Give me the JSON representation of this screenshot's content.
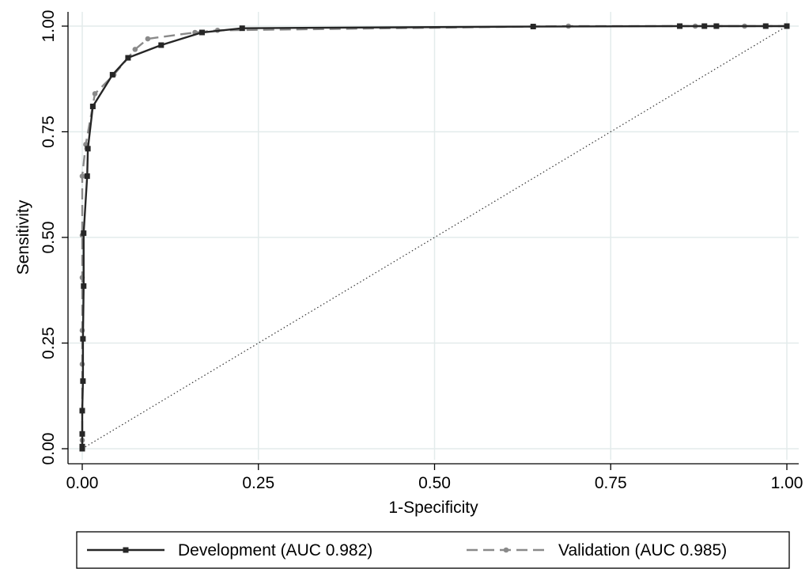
{
  "chart_data": {
    "type": "line",
    "title": "",
    "xlabel": "1-Specificity",
    "ylabel": "Sensitivity",
    "xlim": [
      0,
      1
    ],
    "ylim": [
      0,
      1
    ],
    "xticks": [
      "0.00",
      "0.25",
      "0.50",
      "0.75",
      "1.00"
    ],
    "yticks": [
      "0.00",
      "0.25",
      "0.50",
      "0.75",
      "1.00"
    ],
    "grid": true,
    "legend_position": "bottom",
    "reference_line": {
      "style": "dotted",
      "from": [
        0,
        0
      ],
      "to": [
        1,
        1
      ]
    },
    "series": [
      {
        "name": "Development (AUC 0.982)",
        "color": "#262626",
        "line_style": "solid",
        "marker": "square",
        "points": [
          [
            0.0,
            0.0
          ],
          [
            0.0,
            0.005
          ],
          [
            0.0,
            0.035
          ],
          [
            0.0,
            0.09
          ],
          [
            0.001,
            0.16
          ],
          [
            0.001,
            0.26
          ],
          [
            0.002,
            0.385
          ],
          [
            0.002,
            0.51
          ],
          [
            0.007,
            0.645
          ],
          [
            0.008,
            0.71
          ],
          [
            0.015,
            0.81
          ],
          [
            0.043,
            0.885
          ],
          [
            0.065,
            0.925
          ],
          [
            0.112,
            0.955
          ],
          [
            0.17,
            0.985
          ],
          [
            0.227,
            0.995
          ],
          [
            0.64,
            0.999
          ],
          [
            0.848,
            1.0
          ],
          [
            0.883,
            1.0
          ],
          [
            0.9,
            1.0
          ],
          [
            0.97,
            1.0
          ],
          [
            1.0,
            1.0
          ]
        ]
      },
      {
        "name": "Validation (AUC 0.985)",
        "color": "#8a8a8a",
        "line_style": "dashed",
        "marker": "circle",
        "points": [
          [
            0.0,
            0.0
          ],
          [
            0.0,
            0.02
          ],
          [
            0.0,
            0.09
          ],
          [
            0.0,
            0.2
          ],
          [
            0.0,
            0.28
          ],
          [
            0.0,
            0.405
          ],
          [
            0.0,
            0.505
          ],
          [
            0.0,
            0.645
          ],
          [
            0.005,
            0.72
          ],
          [
            0.018,
            0.84
          ],
          [
            0.045,
            0.885
          ],
          [
            0.075,
            0.945
          ],
          [
            0.093,
            0.97
          ],
          [
            0.16,
            0.985
          ],
          [
            0.192,
            0.99
          ],
          [
            0.69,
            1.0
          ],
          [
            0.87,
            1.0
          ],
          [
            0.94,
            1.0
          ],
          [
            1.0,
            1.0
          ]
        ]
      }
    ]
  }
}
